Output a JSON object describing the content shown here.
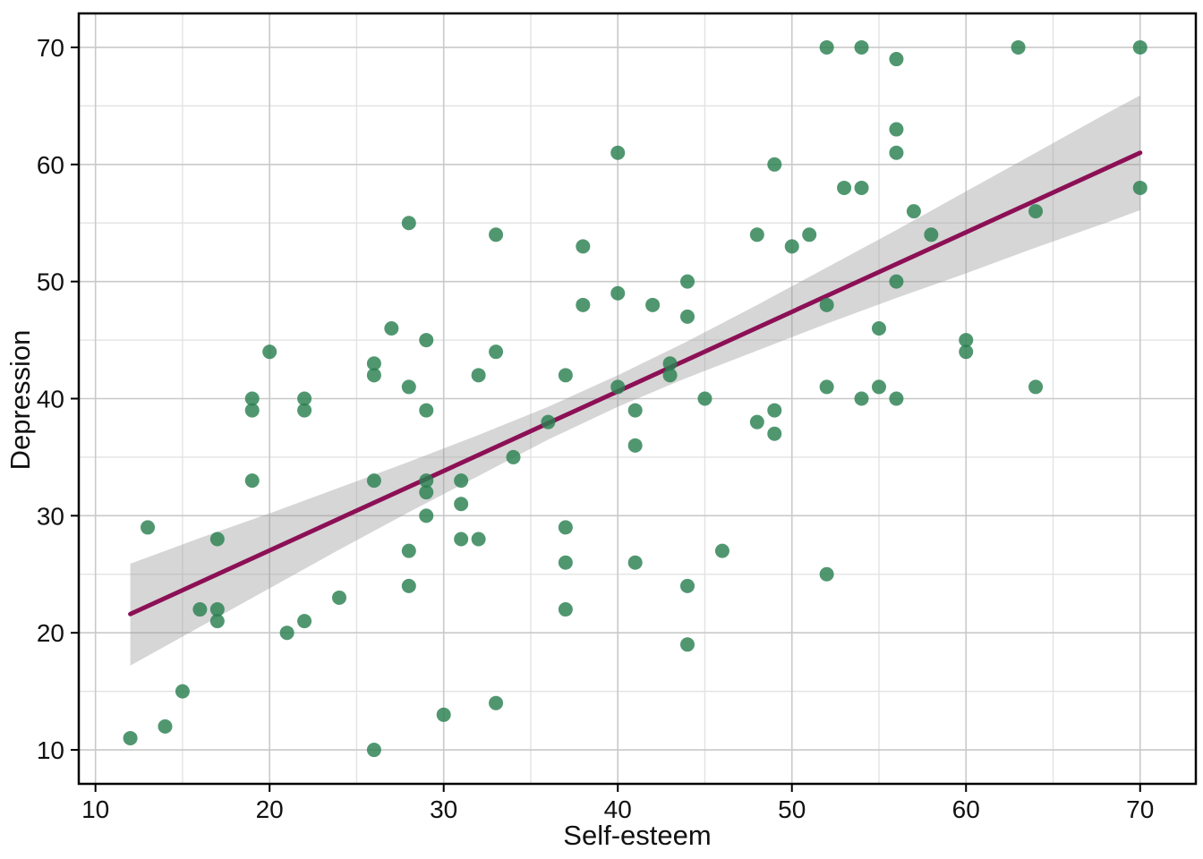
{
  "page": {
    "background": "#ffffff"
  },
  "chart_data": {
    "type": "scatter",
    "title": "",
    "xlabel": "Self-esteem",
    "ylabel": "Depression",
    "xlim": [
      9.04,
      73.2
    ],
    "ylim": [
      7.1,
      72.9
    ],
    "x_ticks": [
      10,
      20,
      30,
      40,
      50,
      60,
      70
    ],
    "y_ticks": [
      10,
      20,
      30,
      40,
      50,
      60,
      70
    ],
    "x_minor": [
      15,
      25,
      35,
      45,
      55,
      65
    ],
    "y_minor": [
      15,
      25,
      35,
      45,
      55,
      65
    ],
    "grid": true,
    "legend_position": "none",
    "points": [
      [
        12,
        11
      ],
      [
        13,
        29
      ],
      [
        14,
        12
      ],
      [
        15,
        15
      ],
      [
        16,
        22
      ],
      [
        17,
        21
      ],
      [
        17,
        22
      ],
      [
        17,
        28
      ],
      [
        19,
        33
      ],
      [
        19,
        39
      ],
      [
        19,
        40
      ],
      [
        20,
        44
      ],
      [
        21,
        20
      ],
      [
        22,
        21
      ],
      [
        22,
        39
      ],
      [
        22,
        40
      ],
      [
        24,
        23
      ],
      [
        26,
        10
      ],
      [
        26,
        33
      ],
      [
        26,
        42
      ],
      [
        26,
        43
      ],
      [
        27,
        46
      ],
      [
        28,
        24
      ],
      [
        28,
        27
      ],
      [
        28,
        41
      ],
      [
        28,
        55
      ],
      [
        29,
        30
      ],
      [
        29,
        32
      ],
      [
        29,
        33
      ],
      [
        29,
        39
      ],
      [
        29,
        45
      ],
      [
        30,
        13
      ],
      [
        31,
        28
      ],
      [
        31,
        31
      ],
      [
        31,
        33
      ],
      [
        32,
        28
      ],
      [
        32,
        42
      ],
      [
        33,
        14
      ],
      [
        33,
        44
      ],
      [
        33,
        54
      ],
      [
        34,
        35
      ],
      [
        36,
        38
      ],
      [
        37,
        22
      ],
      [
        37,
        26
      ],
      [
        37,
        29
      ],
      [
        37,
        42
      ],
      [
        38,
        48
      ],
      [
        38,
        53
      ],
      [
        40,
        41
      ],
      [
        40,
        49
      ],
      [
        40,
        61
      ],
      [
        41,
        26
      ],
      [
        41,
        36
      ],
      [
        41,
        39
      ],
      [
        42,
        48
      ],
      [
        43,
        42
      ],
      [
        43,
        43
      ],
      [
        44,
        19
      ],
      [
        44,
        24
      ],
      [
        44,
        47
      ],
      [
        44,
        50
      ],
      [
        45,
        40
      ],
      [
        46,
        27
      ],
      [
        48,
        38
      ],
      [
        48,
        54
      ],
      [
        49,
        37
      ],
      [
        49,
        39
      ],
      [
        49,
        60
      ],
      [
        50,
        53
      ],
      [
        51,
        54
      ],
      [
        52,
        25
      ],
      [
        52,
        41
      ],
      [
        52,
        48
      ],
      [
        52,
        70
      ],
      [
        53,
        58
      ],
      [
        54,
        40
      ],
      [
        54,
        58
      ],
      [
        54,
        70
      ],
      [
        55,
        41
      ],
      [
        55,
        46
      ],
      [
        56,
        40
      ],
      [
        56,
        50
      ],
      [
        56,
        61
      ],
      [
        56,
        63
      ],
      [
        56,
        69
      ],
      [
        57,
        56
      ],
      [
        58,
        54
      ],
      [
        60,
        44
      ],
      [
        60,
        45
      ],
      [
        63,
        70
      ],
      [
        64,
        41
      ],
      [
        64,
        56
      ],
      [
        70,
        58
      ],
      [
        70,
        70
      ]
    ],
    "regression_line": {
      "x1": 12,
      "y1": 21.6,
      "x2": 70,
      "y2": 61.0
    },
    "confidence_band": {
      "x": [
        12,
        16,
        20,
        24,
        28,
        32,
        36,
        40,
        44,
        48,
        52,
        56,
        60,
        64,
        68,
        70
      ],
      "lower": [
        17.2,
        20.5,
        23.8,
        27.1,
        30.3,
        33.4,
        36.5,
        39.3,
        41.8,
        44.1,
        46.4,
        48.6,
        50.7,
        52.9,
        55.0,
        56.1
      ],
      "upper": [
        25.9,
        28.1,
        30.2,
        32.4,
        34.6,
        36.9,
        39.3,
        42.0,
        44.9,
        48.0,
        51.2,
        54.4,
        57.7,
        61.0,
        64.3,
        65.9
      ]
    },
    "style": {
      "point_color": "#2a8050",
      "point_opacity": 0.82,
      "point_radius": 8,
      "line_color": "#8c1055",
      "line_width": 5,
      "band_color": "#999999",
      "band_opacity": 0.4,
      "grid_major_color": "#c9c9c9",
      "grid_minor_color": "#e3e3e3",
      "axis_color": "#000000",
      "text_color": "#111111"
    }
  }
}
